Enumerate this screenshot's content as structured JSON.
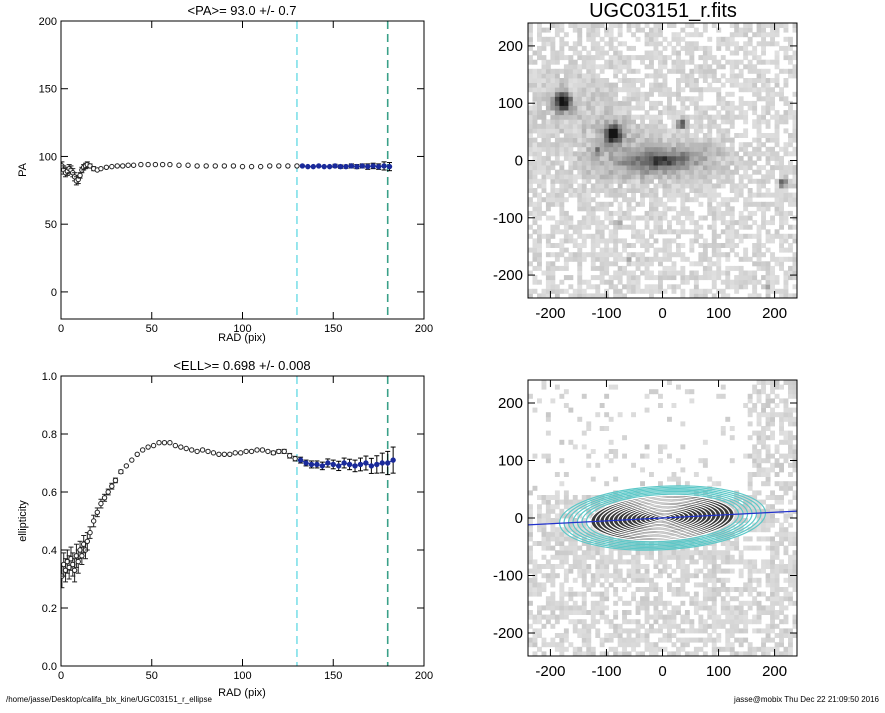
{
  "footer": {
    "path": "/home/jasse/Desktop/califa_blx_kine/UGC03151_r_ellipse",
    "user": "jasse@mobix  Thu Dec 22 21:09:50 2016"
  },
  "colors": {
    "profile_points": "#222222",
    "fit_points": "#1a2a9a",
    "inner_radius_line": "#7fe0e8",
    "outer_radius_line": "#3aa088",
    "ellipse_contours": "#ffffff",
    "outer_ellipse_contours": "#5cc8c8",
    "major_axis_line": "#2233cc"
  },
  "chart_data": [
    {
      "type": "scatter",
      "title": "<PA>=  93.0 +/-   0.7",
      "xlabel": "RAD (pix)",
      "ylabel": "PA",
      "xlim": [
        0,
        200
      ],
      "ylim": [
        -20,
        200
      ],
      "xticks": [
        0,
        50,
        100,
        150,
        200
      ],
      "yticks": [
        0,
        50,
        100,
        150,
        200
      ],
      "vlines": [
        130,
        180
      ],
      "series": [
        {
          "role": "profile",
          "x": [
            0.5,
            1.5,
            2.5,
            3.5,
            4.5,
            5.5,
            6.5,
            7.5,
            8.5,
            9.5,
            10.5,
            11.5,
            12.5,
            13.5,
            14.5,
            16,
            18,
            20,
            22,
            25,
            28,
            31,
            34,
            37,
            40,
            44,
            48,
            52,
            56,
            60,
            65,
            70,
            75,
            80,
            85,
            90,
            95,
            100,
            105,
            110,
            115,
            120,
            125,
            130
          ],
          "y": [
            93,
            90,
            88,
            89,
            91,
            90,
            88,
            85,
            82,
            83,
            86,
            90,
            92,
            93,
            94,
            93,
            91,
            90,
            91,
            92,
            92.5,
            93,
            93,
            93.5,
            93.5,
            94,
            94,
            94,
            94,
            94,
            93.5,
            93.5,
            93,
            93,
            93,
            93,
            93,
            92.5,
            92.5,
            92.5,
            93,
            93,
            93,
            93
          ],
          "err": [
            3,
            3,
            3,
            3,
            3,
            3,
            3,
            3,
            3,
            3,
            2,
            2,
            2,
            2,
            2,
            1.5,
            1.5,
            1,
            1,
            1,
            1,
            1,
            1,
            1,
            1,
            0.8,
            0.8,
            0.8,
            0.8,
            0.8,
            0.8,
            0.8,
            0.8,
            0.8,
            0.8,
            0.8,
            0.8,
            0.8,
            0.8,
            0.8,
            0.8,
            0.8,
            0.8,
            0.8
          ]
        },
        {
          "role": "fit-range",
          "x": [
            133,
            136,
            139,
            142,
            145,
            148,
            151,
            154,
            157,
            160,
            163,
            166,
            169,
            172,
            175,
            178,
            181
          ],
          "y": [
            93,
            92.5,
            92.5,
            93,
            92.5,
            92.5,
            93,
            92.5,
            92.5,
            93,
            92.5,
            93,
            92.5,
            93,
            92.5,
            93,
            92.5
          ],
          "err": [
            1,
            1,
            1,
            1,
            1,
            1,
            1.2,
            1.2,
            1.2,
            1.5,
            1.5,
            1.5,
            2,
            2,
            2,
            3,
            3
          ]
        }
      ]
    },
    {
      "type": "scatter",
      "title": "<ELL>= 0.698 +/-  0.008",
      "xlabel": "RAD (pix)",
      "ylabel": "ellipticity",
      "xlim": [
        0,
        200
      ],
      "ylim": [
        0,
        1
      ],
      "xticks": [
        0,
        50,
        100,
        150,
        200
      ],
      "yticks": [
        0.0,
        0.2,
        0.4,
        0.6,
        0.8,
        1.0
      ],
      "vlines": [
        130,
        180
      ],
      "series": [
        {
          "role": "profile",
          "x": [
            0.5,
            1.5,
            2.5,
            3.5,
            4.5,
            5.5,
            6.5,
            7.5,
            8.5,
            9.5,
            10.5,
            11.5,
            12.5,
            13.5,
            14.5,
            16,
            18,
            20,
            22,
            24,
            26,
            28,
            30,
            33,
            36,
            39,
            42,
            45,
            48,
            51,
            54,
            57,
            60,
            63,
            66,
            69,
            72,
            75,
            78,
            81,
            84,
            87,
            90,
            93,
            96,
            99,
            102,
            105,
            108,
            111,
            114,
            117,
            120,
            123,
            126,
            129
          ],
          "y": [
            0.31,
            0.35,
            0.33,
            0.36,
            0.34,
            0.37,
            0.35,
            0.33,
            0.38,
            0.36,
            0.4,
            0.38,
            0.42,
            0.4,
            0.43,
            0.46,
            0.5,
            0.53,
            0.56,
            0.58,
            0.6,
            0.62,
            0.64,
            0.67,
            0.69,
            0.71,
            0.73,
            0.745,
            0.755,
            0.76,
            0.77,
            0.77,
            0.77,
            0.76,
            0.755,
            0.75,
            0.745,
            0.74,
            0.745,
            0.74,
            0.735,
            0.73,
            0.73,
            0.73,
            0.735,
            0.735,
            0.74,
            0.74,
            0.745,
            0.745,
            0.74,
            0.735,
            0.74,
            0.74,
            0.725,
            0.715
          ],
          "err": [
            0.04,
            0.04,
            0.04,
            0.04,
            0.04,
            0.04,
            0.04,
            0.04,
            0.04,
            0.04,
            0.03,
            0.03,
            0.03,
            0.03,
            0.03,
            0.02,
            0.02,
            0.015,
            0.015,
            0.012,
            0.01,
            0.01,
            0.008,
            0.006,
            0.005,
            0.005,
            0.005,
            0.004,
            0.004,
            0.004,
            0.004,
            0.004,
            0.004,
            0.004,
            0.004,
            0.004,
            0.004,
            0.004,
            0.004,
            0.004,
            0.004,
            0.004,
            0.004,
            0.004,
            0.004,
            0.004,
            0.005,
            0.005,
            0.005,
            0.005,
            0.005,
            0.006,
            0.006,
            0.007,
            0.008,
            0.008
          ]
        },
        {
          "role": "fit-range",
          "x": [
            132,
            135,
            138,
            141,
            144,
            147,
            150,
            153,
            156,
            159,
            162,
            165,
            168,
            171,
            174,
            177,
            180,
            183
          ],
          "y": [
            0.71,
            0.7,
            0.695,
            0.695,
            0.69,
            0.7,
            0.695,
            0.69,
            0.7,
            0.695,
            0.69,
            0.695,
            0.7,
            0.69,
            0.695,
            0.7,
            0.7,
            0.71
          ],
          "err": [
            0.01,
            0.01,
            0.012,
            0.012,
            0.013,
            0.014,
            0.015,
            0.016,
            0.017,
            0.018,
            0.02,
            0.022,
            0.024,
            0.026,
            0.03,
            0.034,
            0.04,
            0.045
          ]
        }
      ]
    },
    {
      "type": "heatmap",
      "title": "UGC03151_r.fits",
      "xlabel": "",
      "ylabel": "",
      "xlim": [
        -240,
        240
      ],
      "ylim": [
        -240,
        240
      ],
      "xticks": [
        -200,
        -100,
        0,
        100,
        200
      ],
      "yticks": [
        -200,
        -100,
        0,
        100,
        200
      ],
      "colormap": "inverted-grayscale",
      "point_sources": [
        {
          "x": -178,
          "y": 103,
          "strength": "bright"
        },
        {
          "x": -88,
          "y": 47,
          "strength": "bright"
        },
        {
          "x": 35,
          "y": 65,
          "strength": "medium"
        },
        {
          "x": -118,
          "y": 18,
          "strength": "faint"
        },
        {
          "x": 215,
          "y": -38,
          "strength": "medium"
        },
        {
          "x": -78,
          "y": -108,
          "strength": "faint"
        },
        {
          "x": -60,
          "y": -175,
          "strength": "faint"
        },
        {
          "x": 190,
          "y": -218,
          "strength": "faint"
        }
      ],
      "galaxy": {
        "x": 0,
        "y": 0,
        "semi_major": 150,
        "ellipticity": 0.7,
        "pa_deg": 93
      }
    },
    {
      "type": "heatmap",
      "title": "",
      "xlabel": "",
      "ylabel": "",
      "xlim": [
        -240,
        240
      ],
      "ylim": [
        -240,
        240
      ],
      "xticks": [
        -200,
        -100,
        0,
        100,
        200
      ],
      "yticks": [
        -200,
        -100,
        0,
        100,
        200
      ],
      "colormap": "inverted-grayscale",
      "galaxy": {
        "x": 0,
        "y": 0,
        "semi_major": 150,
        "ellipticity": 0.7,
        "pa_deg": 93
      },
      "major_axis": {
        "from": [
          -240,
          -12
        ],
        "to": [
          240,
          12
        ]
      },
      "ellipse_semi_major_inner": [
        8,
        16,
        24,
        32,
        40,
        48,
        56,
        64,
        72,
        80,
        88,
        96,
        104,
        112,
        120,
        128
      ],
      "ellipse_semi_major_outer": [
        136,
        144,
        152,
        160,
        168,
        176,
        184
      ],
      "ellipse_ellipticity": 0.7
    }
  ]
}
